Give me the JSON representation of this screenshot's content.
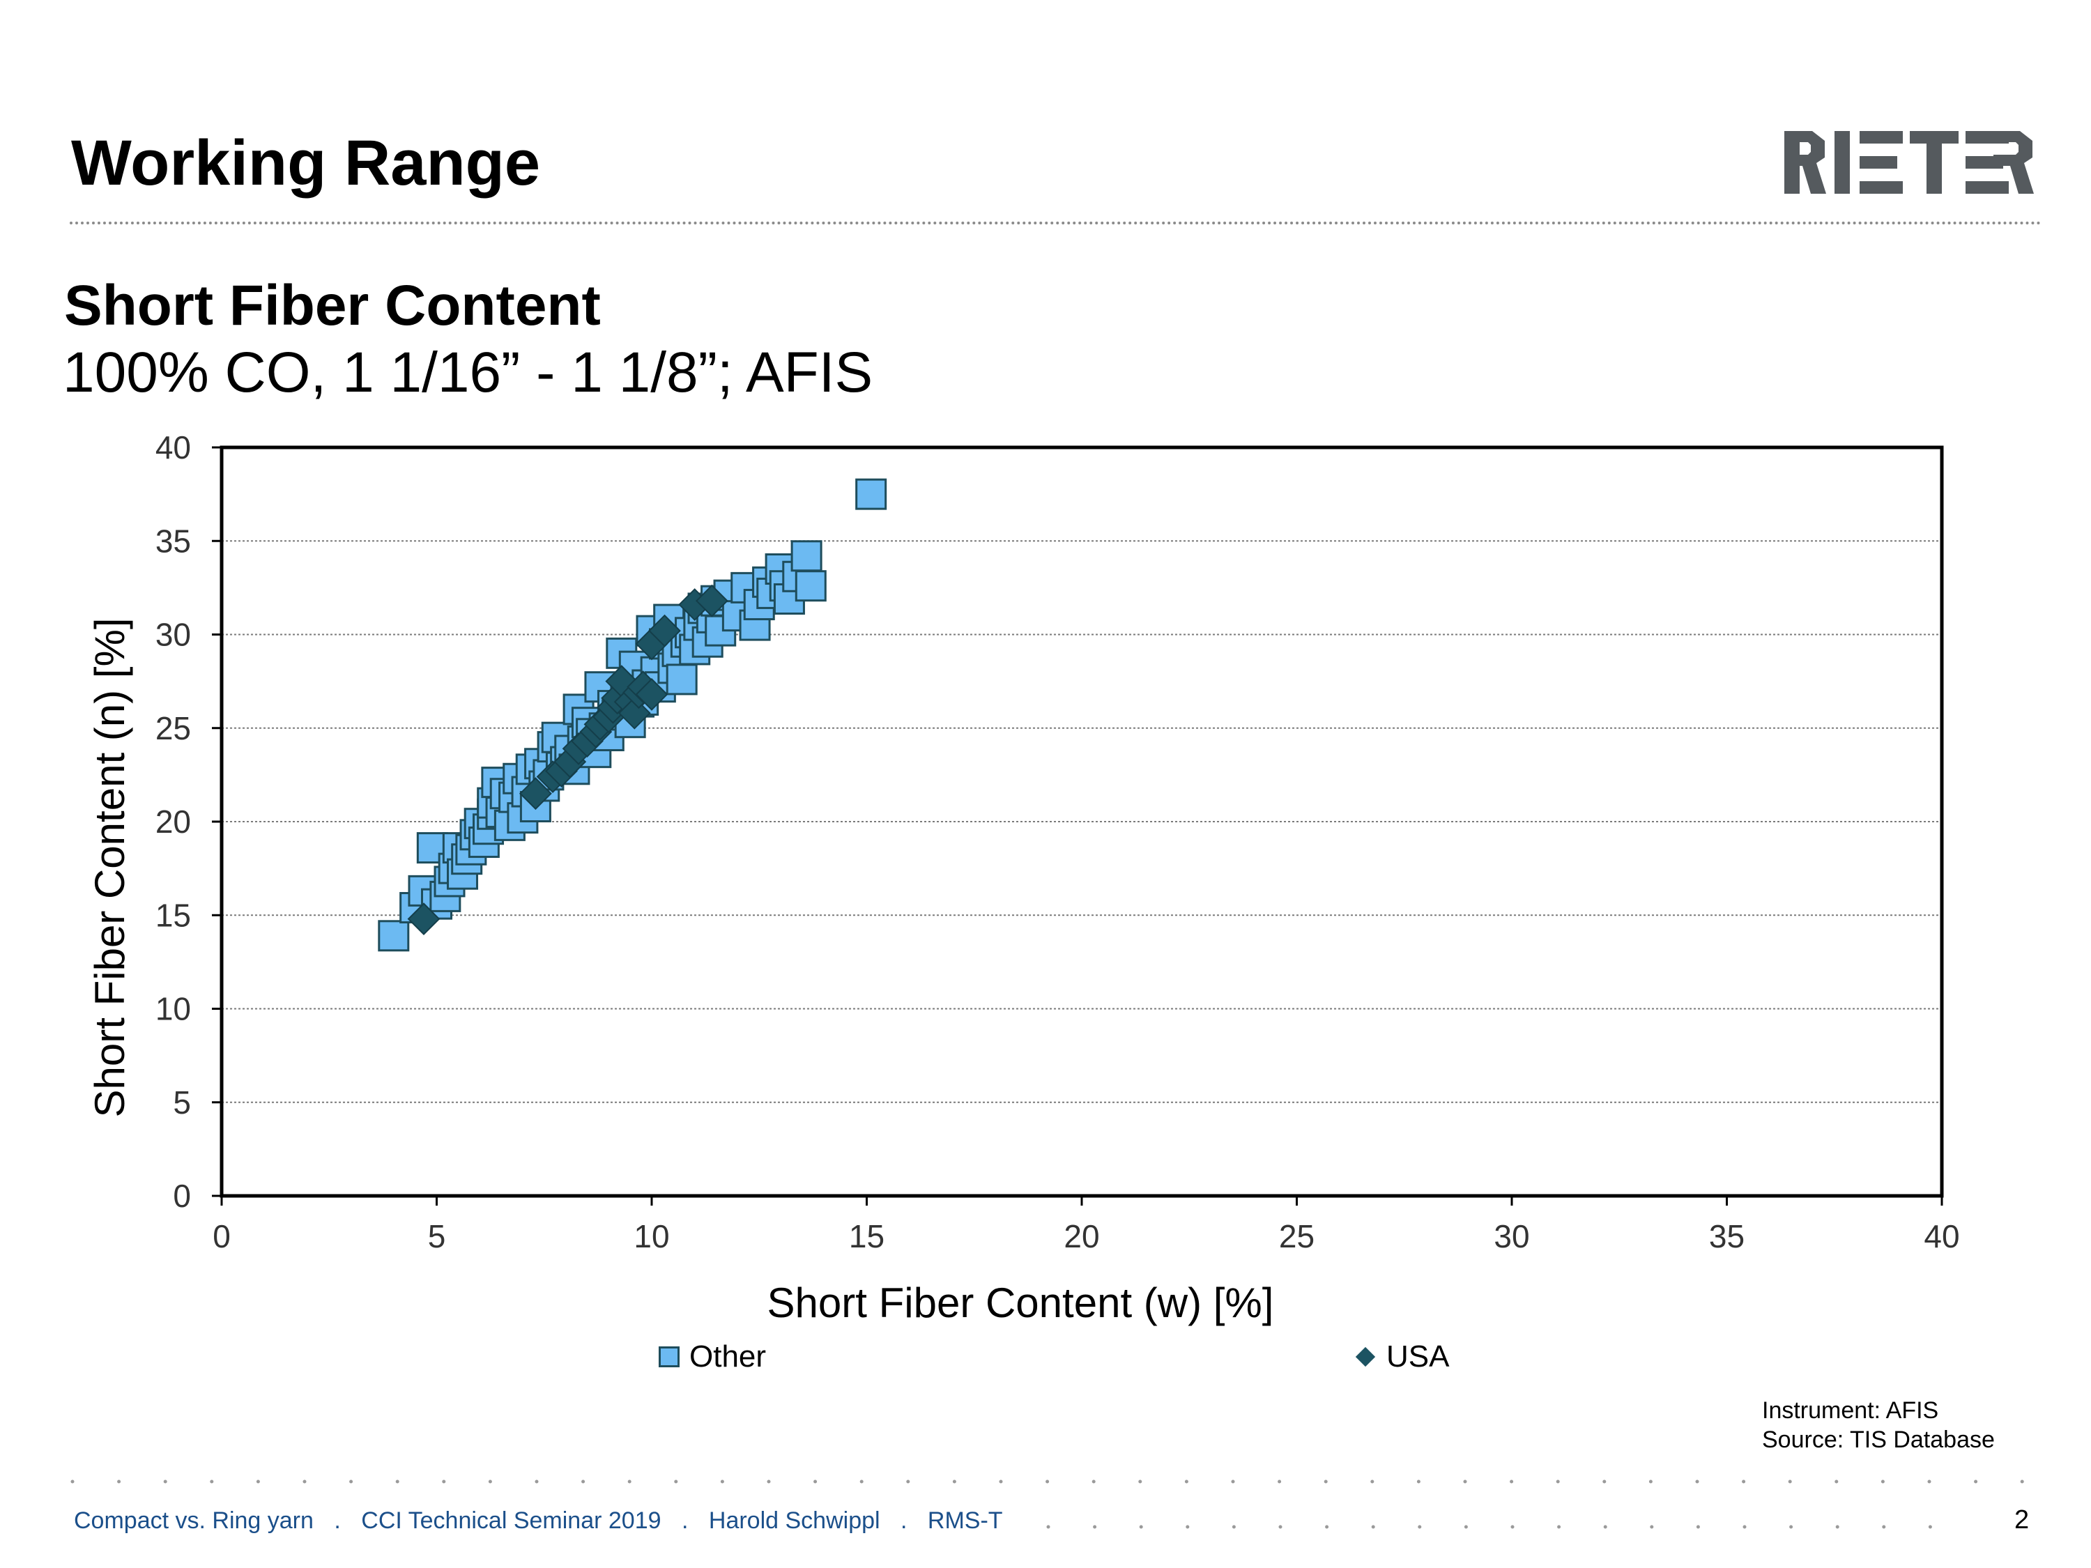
{
  "slide": {
    "title": "Working Range",
    "subtitle": "Short Fiber Content",
    "subtitle2": "100% CO, 1 1/16” - 1 1/8”; AFIS",
    "logo_text": "RIETER",
    "instrument": "Instrument: AFIS",
    "source": "Source: TIS Database",
    "footer_items": [
      "Compact vs. Ring yarn",
      "CCI Technical Seminar 2019",
      "Harold Schwippl",
      "RMS-T"
    ],
    "footer_sep": ".",
    "page_number": "2"
  },
  "colors": {
    "other_fill": "#6cbaf2",
    "other_edge": "#1e4d5c",
    "usa_fill": "#1c5362",
    "grid": "#7a7a7a",
    "footer_text": "#1b4f8a"
  },
  "chart_data": {
    "type": "scatter",
    "xlabel": "Short Fiber Content (w) [%]",
    "ylabel": "Short Fiber Content (n) [%]",
    "xlim": [
      0,
      40
    ],
    "ylim": [
      0,
      40
    ],
    "xticks": [
      0,
      5,
      10,
      15,
      20,
      25,
      30,
      35,
      40
    ],
    "yticks": [
      0,
      5,
      10,
      15,
      20,
      25,
      30,
      35,
      40
    ],
    "grid": "horizontal dotted",
    "legend_position": "bottom",
    "series": [
      {
        "name": "Other",
        "marker": "square",
        "points": [
          [
            4.0,
            13.9
          ],
          [
            4.5,
            15.4
          ],
          [
            4.7,
            16.3
          ],
          [
            4.9,
            18.6
          ],
          [
            5.0,
            15.6
          ],
          [
            5.2,
            16.0
          ],
          [
            5.3,
            16.8
          ],
          [
            5.4,
            17.5
          ],
          [
            5.5,
            18.6
          ],
          [
            5.6,
            17.2
          ],
          [
            5.7,
            18.0
          ],
          [
            5.8,
            18.5
          ],
          [
            5.9,
            19.3
          ],
          [
            6.0,
            19.9
          ],
          [
            6.1,
            18.9
          ],
          [
            6.2,
            19.6
          ],
          [
            6.3,
            20.4
          ],
          [
            6.3,
            21.0
          ],
          [
            6.4,
            22.1
          ],
          [
            6.5,
            20.5
          ],
          [
            6.6,
            21.5
          ],
          [
            6.7,
            19.8
          ],
          [
            6.8,
            21.3
          ],
          [
            6.9,
            22.3
          ],
          [
            7.0,
            20.2
          ],
          [
            7.1,
            21.6
          ],
          [
            7.2,
            22.8
          ],
          [
            7.3,
            20.8
          ],
          [
            7.4,
            23.1
          ],
          [
            7.5,
            21.9
          ],
          [
            7.6,
            22.5
          ],
          [
            7.7,
            24.0
          ],
          [
            7.8,
            24.5
          ],
          [
            7.9,
            22.9
          ],
          [
            8.0,
            23.2
          ],
          [
            8.1,
            23.8
          ],
          [
            8.2,
            22.8
          ],
          [
            8.3,
            26.0
          ],
          [
            8.4,
            24.3
          ],
          [
            8.5,
            25.3
          ],
          [
            8.6,
            24.7
          ],
          [
            8.7,
            23.7
          ],
          [
            8.8,
            27.2
          ],
          [
            8.9,
            25.0
          ],
          [
            9.0,
            24.6
          ],
          [
            9.1,
            26.2
          ],
          [
            9.2,
            25.7
          ],
          [
            9.3,
            29.0
          ],
          [
            9.4,
            26.9
          ],
          [
            9.5,
            25.3
          ],
          [
            9.6,
            28.3
          ],
          [
            9.7,
            26.4
          ],
          [
            9.8,
            26.5
          ],
          [
            9.9,
            27.3
          ],
          [
            10.0,
            30.2
          ],
          [
            10.1,
            28.0
          ],
          [
            10.2,
            27.2
          ],
          [
            10.3,
            29.5
          ],
          [
            10.4,
            30.8
          ],
          [
            10.5,
            28.2
          ],
          [
            10.6,
            29.1
          ],
          [
            10.7,
            27.6
          ],
          [
            10.8,
            29.6
          ],
          [
            10.9,
            30.1
          ],
          [
            11.0,
            29.2
          ],
          [
            11.1,
            30.5
          ],
          [
            11.2,
            31.4
          ],
          [
            11.3,
            29.6
          ],
          [
            11.4,
            30.9
          ],
          [
            11.5,
            31.8
          ],
          [
            11.6,
            30.2
          ],
          [
            11.8,
            32.1
          ],
          [
            12.0,
            31.0
          ],
          [
            12.2,
            32.5
          ],
          [
            12.4,
            30.5
          ],
          [
            12.5,
            31.6
          ],
          [
            12.7,
            32.8
          ],
          [
            12.8,
            32.2
          ],
          [
            13.0,
            33.5
          ],
          [
            13.1,
            32.6
          ],
          [
            13.2,
            31.9
          ],
          [
            13.4,
            33.1
          ],
          [
            13.6,
            34.2
          ],
          [
            13.7,
            32.6
          ],
          [
            15.1,
            37.5
          ]
        ]
      },
      {
        "name": "USA",
        "marker": "diamond",
        "points": [
          [
            4.7,
            14.8
          ],
          [
            7.3,
            21.5
          ],
          [
            7.7,
            22.4
          ],
          [
            7.9,
            22.7
          ],
          [
            8.1,
            23.2
          ],
          [
            8.3,
            23.9
          ],
          [
            8.5,
            24.3
          ],
          [
            8.7,
            24.8
          ],
          [
            8.8,
            25.2
          ],
          [
            9.0,
            25.6
          ],
          [
            9.1,
            26.1
          ],
          [
            9.2,
            26.6
          ],
          [
            9.3,
            27.5
          ],
          [
            9.5,
            26.4
          ],
          [
            9.6,
            25.8
          ],
          [
            9.7,
            26.9
          ],
          [
            9.8,
            27.2
          ],
          [
            10.0,
            26.8
          ],
          [
            10.0,
            29.5
          ],
          [
            10.3,
            30.2
          ],
          [
            11.0,
            31.6
          ],
          [
            11.4,
            31.8
          ]
        ]
      }
    ]
  }
}
